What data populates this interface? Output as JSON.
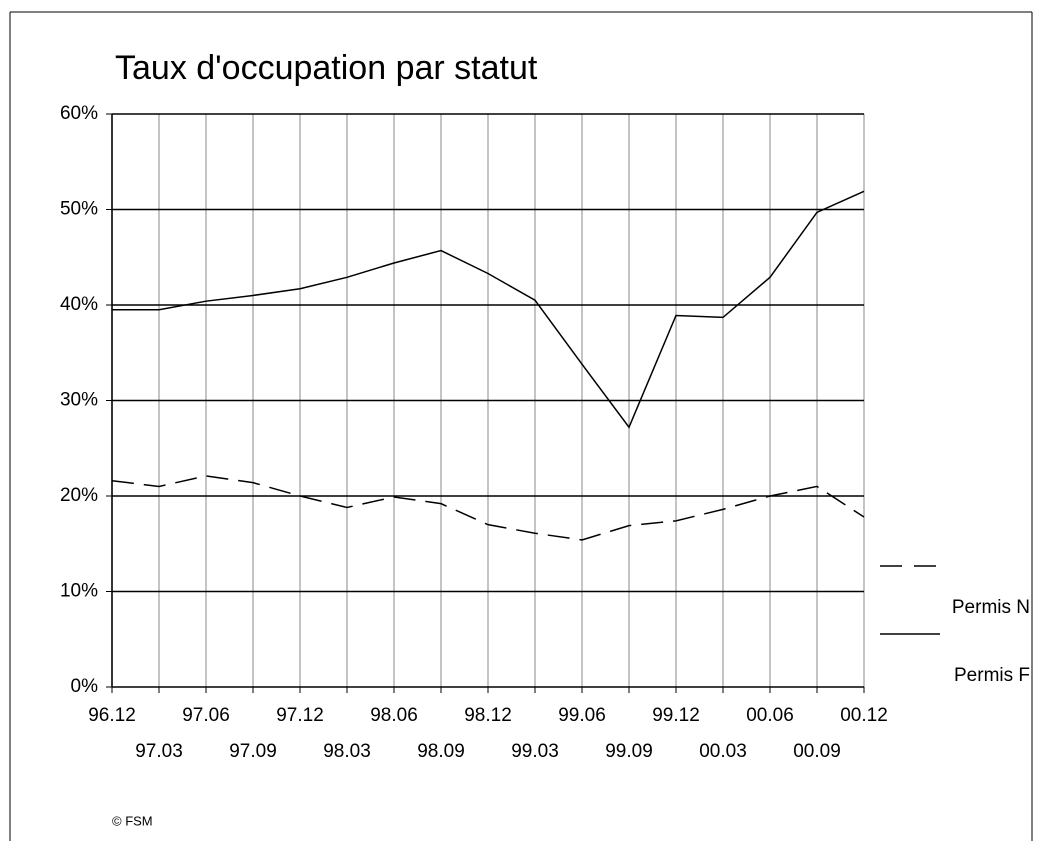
{
  "chart_data": {
    "type": "line",
    "title": "Taux d'occupation par statut",
    "categories": [
      "96.12",
      "97.03",
      "97.06",
      "97.09",
      "97.12",
      "98.03",
      "98.06",
      "98.09",
      "98.12",
      "99.03",
      "99.06",
      "99.09",
      "99.12",
      "00.03",
      "00.06",
      "00.09",
      "00.12"
    ],
    "series": [
      {
        "name": "Permis N",
        "color": "#000000",
        "dash": "dashed",
        "values": [
          21.6,
          21,
          22.1,
          21.4,
          20,
          18.8,
          19.9,
          19.2,
          17,
          16.1,
          15.4,
          16.9,
          17.4,
          18.6,
          20,
          21,
          17.8
        ]
      },
      {
        "name": "Permis F",
        "color": "#000000",
        "dash": "solid",
        "values": [
          39.5,
          39.5,
          40.4,
          41,
          41.7,
          42.9,
          44.4,
          45.7,
          43.3,
          40.5,
          33.8,
          27.2,
          38.9,
          38.7,
          42.9,
          49.7,
          51.9
        ]
      }
    ],
    "ylim": [
      0,
      60
    ],
    "yticks": [
      {
        "value": 0,
        "label": "0%"
      },
      {
        "value": 10,
        "label": "10%"
      },
      {
        "value": 20,
        "label": "20%"
      },
      {
        "value": 30,
        "label": "30%"
      },
      {
        "value": 40,
        "label": "40%"
      },
      {
        "value": 50,
        "label": "50%"
      },
      {
        "value": 60,
        "label": "60%"
      }
    ],
    "grid": true,
    "legend": "right",
    "footnote": "© FSM"
  }
}
